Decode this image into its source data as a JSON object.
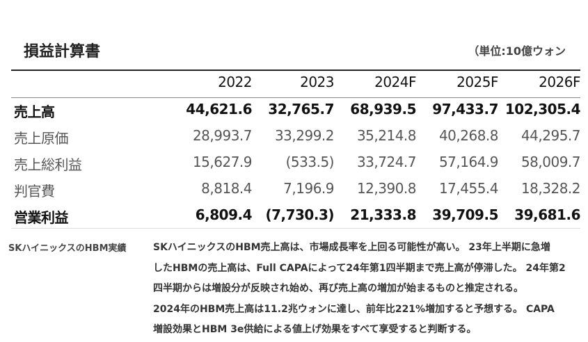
{
  "header": {
    "title": "損益計算書",
    "unit": "（単位:10億ウォン"
  },
  "table": {
    "columns": [
      "2022",
      "2023",
      "2024F",
      "2025F",
      "2026F"
    ],
    "rows": [
      {
        "label": "売上高",
        "bold": true,
        "cells": [
          "44,621.6",
          "32,765.7",
          "68,939.5",
          "97,433.7",
          "102,305.4"
        ]
      },
      {
        "label": "売上原価",
        "bold": false,
        "cells": [
          "28,993.7",
          "33,299.2",
          "35,214.8",
          "40,268.8",
          "44,295.7"
        ]
      },
      {
        "label": "売上総利益",
        "bold": false,
        "cells": [
          "15,627.9",
          "(533.5)",
          "33,724.7",
          "57,164.9",
          "58,009.7"
        ]
      },
      {
        "label": "判官費",
        "bold": false,
        "cells": [
          "8,818.4",
          "7,196.9",
          "12,390.8",
          "17,455.4",
          "18,328.2"
        ]
      },
      {
        "label": "営業利益",
        "bold": true,
        "cells": [
          "6,809.4",
          "(7,730.3)",
          "21,333.8",
          "39,709.5",
          "39,681.6"
        ]
      }
    ]
  },
  "note": {
    "label": "SKハイニックスのHBM実績",
    "lines": [
      "SKハイニックスのHBM売上高は、市場成長率を上回る可能性が高い。 23年上半期に急増",
      "したHBMの売上高は、Full CAPAによって24年第1四半期まで売上高が停滞した。 24年第2",
      "四半期からは増設分が反映され始め、再び売上高の増加が始まるものと推定される。",
      "2024年のHBM売上高は11.2兆ウォンに達し、前年比221%増加すると予想する。 CAPA",
      "増設効果とHBM 3e供給による値上げ効果をすべて享受すると判断する。"
    ]
  }
}
